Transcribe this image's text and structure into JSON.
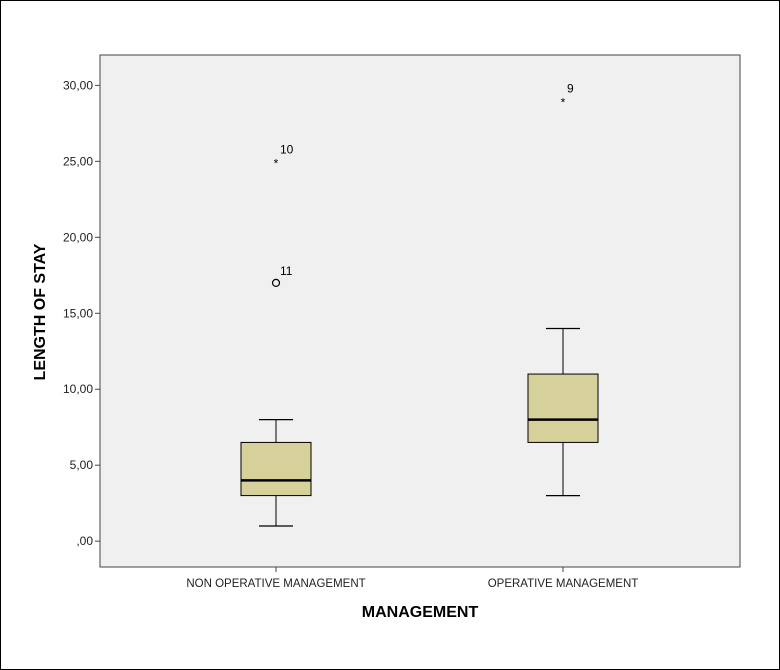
{
  "chart_data": {
    "type": "boxplot",
    "xlabel": "MANAGEMENT",
    "ylabel": "LENGTH OF STAY",
    "ylim": [
      -1.7,
      32
    ],
    "yticks": [
      0,
      5,
      10,
      15,
      20,
      25,
      30
    ],
    "ytick_labels": [
      ",00",
      "5,00",
      "10,00",
      "15,00",
      "20,00",
      "25,00",
      "30,00"
    ],
    "grid": false,
    "box_color": "#d6d19b",
    "plot_background": "#f0f0f0",
    "categories": [
      "NON OPERATIVE MANAGEMENT",
      "OPERATIVE MANAGEMENT"
    ],
    "boxes": [
      {
        "category": "NON OPERATIVE MANAGEMENT",
        "whisker_low": 1,
        "q1": 3,
        "median": 4,
        "q3": 6.5,
        "whisker_high": 8,
        "outliers": [
          {
            "value": 17,
            "label": "11",
            "marker": "circle"
          },
          {
            "value": 25,
            "label": "10",
            "marker": "star"
          }
        ]
      },
      {
        "category": "OPERATIVE MANAGEMENT",
        "whisker_low": 3,
        "q1": 6.5,
        "median": 8,
        "q3": 11,
        "whisker_high": 14,
        "outliers": [
          {
            "value": 29,
            "label": "9",
            "marker": "star"
          }
        ]
      }
    ]
  }
}
